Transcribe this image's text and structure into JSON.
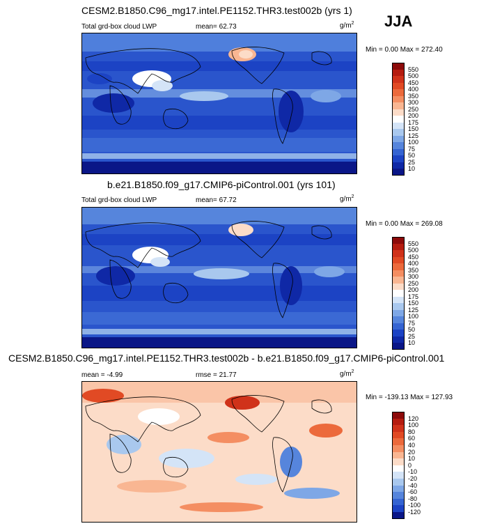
{
  "season": "JJA",
  "panels": [
    {
      "title": "CESM2.B1850.C96_mg17.intel.PE1152.THR3.test002b (yrs 1)",
      "left_label": "Total grd-box cloud LWP",
      "stat_label": "mean=",
      "stat_value": "62.73",
      "units_base": "g/m",
      "units_exp": "2",
      "minmax": "Min =   0.00 Max = 272.40",
      "colorbar_type": "abs"
    },
    {
      "title": "b.e21.B1850.f09_g17.CMIP6-piControl.001 (yrs 101)",
      "left_label": "Total grd-box cloud LWP",
      "stat_label": "mean=",
      "stat_value": "67.72",
      "units_base": "g/m",
      "units_exp": "2",
      "minmax": "Min =   0.00 Max = 269.08",
      "colorbar_type": "abs"
    },
    {
      "title": "CESM2.B1850.C96_mg17.intel.PE1152.THR3.test002b - b.e21.B1850.f09_g17.CMIP6-piControl.001",
      "left_label": "mean =  -4.99",
      "stat_label": "rmse =",
      "stat_value": "21.77",
      "units_base": "g/m",
      "units_exp": "2",
      "minmax": "Min = -139.13 Max = 127.93",
      "colorbar_type": "diff"
    }
  ],
  "colorbar_abs": {
    "labels": [
      "550",
      "500",
      "450",
      "400",
      "350",
      "300",
      "250",
      "200",
      "175",
      "150",
      "125",
      "100",
      "75",
      "50",
      "25",
      "10"
    ],
    "colors": [
      "#8c0a0a",
      "#b51c10",
      "#d0321a",
      "#e14a24",
      "#ec6a3c",
      "#f48e62",
      "#f9b692",
      "#fcdcc8",
      "#ffffff",
      "#d4e4f7",
      "#a9c8ee",
      "#7ea7e6",
      "#5685dc",
      "#3564d2",
      "#1c43c4",
      "#0f28a6",
      "#0a1687"
    ]
  },
  "colorbar_diff": {
    "labels": [
      "120",
      "100",
      "80",
      "60",
      "40",
      "20",
      "10",
      "0",
      "-10",
      "-20",
      "-40",
      "-60",
      "-80",
      "-100",
      "-120"
    ],
    "colors": [
      "#8c0a0a",
      "#b51c10",
      "#d0321a",
      "#e14a24",
      "#ec6a3c",
      "#f48e62",
      "#f9b692",
      "#fcdcc8",
      "#ffffff",
      "#d4e4f7",
      "#a9c8ee",
      "#7ea7e6",
      "#5685dc",
      "#3564d2",
      "#1c43c4",
      "#0a1687"
    ]
  }
}
